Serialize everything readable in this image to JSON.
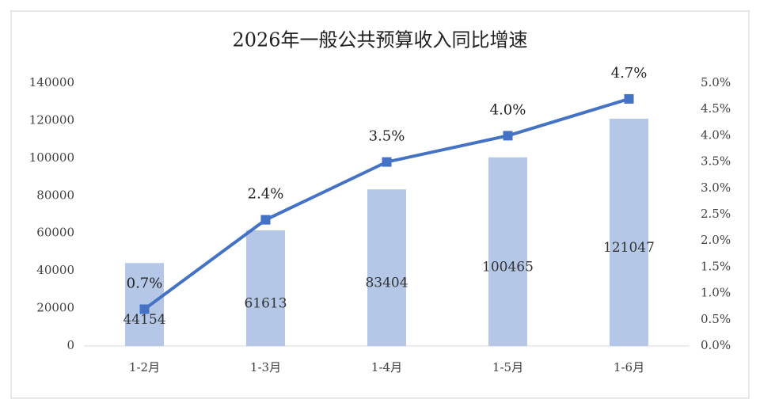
{
  "chart_data": {
    "type": "bar-line",
    "title": "2026年一般公共预算收入同比增速",
    "categories": [
      "1-2月",
      "1-3月",
      "1-4月",
      "1-5月",
      "1-6月"
    ],
    "series": [
      {
        "type": "bar",
        "color": "#b4c7e7",
        "values": [
          44154,
          61613,
          83404,
          100465,
          121047
        ]
      },
      {
        "type": "line",
        "axis": "y2",
        "color": "#4472c4",
        "values": [
          0.7,
          2.4,
          3.5,
          4.0,
          4.7
        ],
        "value_labels": [
          "0.7%",
          "2.4%",
          "3.5%",
          "4.0%",
          "4.7%"
        ]
      }
    ],
    "ylim": [
      0,
      140000
    ],
    "yticks": [
      0,
      20000,
      40000,
      60000,
      80000,
      100000,
      120000,
      140000
    ],
    "y2lim": [
      0,
      5
    ],
    "y2ticks": [
      {
        "value": 0,
        "label": "0.0%"
      },
      {
        "value": 0.5,
        "label": "0.5%"
      },
      {
        "value": 1,
        "label": "1.0%"
      },
      {
        "value": 1.5,
        "label": "1.5%"
      },
      {
        "value": 2,
        "label": "2.0%"
      },
      {
        "value": 2.5,
        "label": "2.5%"
      },
      {
        "value": 3,
        "label": "3.0%"
      },
      {
        "value": 3.5,
        "label": "3.5%"
      },
      {
        "value": 4,
        "label": "4.0%"
      },
      {
        "value": 4.5,
        "label": "4.5%"
      },
      {
        "value": 5,
        "label": "5.0%"
      }
    ]
  }
}
